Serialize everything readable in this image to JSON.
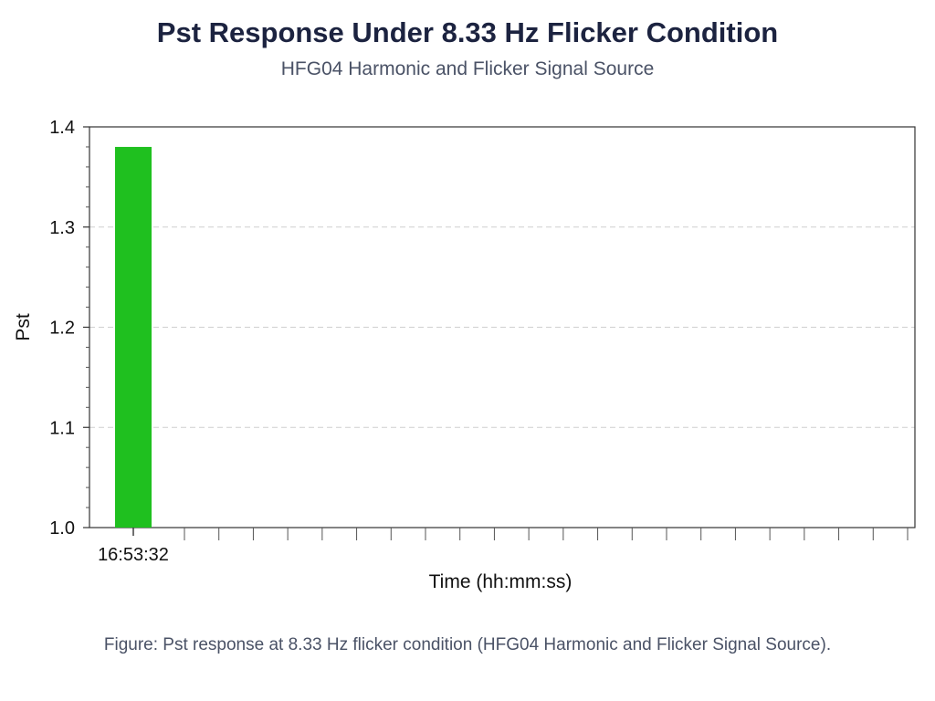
{
  "chart_data": {
    "type": "bar",
    "title": "Pst Response Under 8.33 Hz Flicker Condition",
    "subtitle": "HFG04 Harmonic and Flicker Signal Source",
    "xlabel": "Time (hh:mm:ss)",
    "ylabel": "Pst",
    "categories": [
      "16:53:32"
    ],
    "series": [
      {
        "values": [
          1.38
        ],
        "color": "#1fc01f"
      }
    ],
    "ylim": [
      1.0,
      1.4
    ],
    "yticks": [
      1.0,
      1.1,
      1.2,
      1.3,
      1.4
    ],
    "grid": {
      "y": true,
      "style": "dashed"
    },
    "x_minor_tick_count": 22
  },
  "caption": "Figure: Pst response at 8.33 Hz flicker condition (HFG04 Harmonic and Flicker Signal Source)."
}
